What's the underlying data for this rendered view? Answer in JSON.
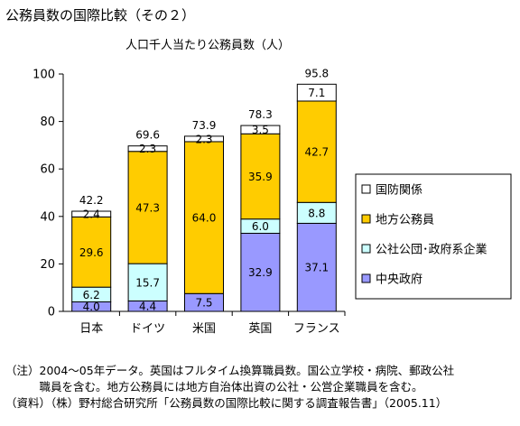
{
  "page": {
    "title": "公務員数の国際比較（その２）"
  },
  "notes": [
    "（注）2004～05年データ。英国はフルタイム換算職員数。国公立学校・病院、郵政公社",
    "　　　職員を含む。地方公務員には地方自治体出資の公社・公営企業職員を含む。",
    "（資料）（株）野村総合研究所「公務員数の国際比較に関する調査報告書」（2005.11）"
  ],
  "chart_data": {
    "type": "bar",
    "stacked": true,
    "title": "人口千人当たり公務員数（人）",
    "categories": [
      "日本",
      "ドイツ",
      "米国",
      "英国",
      "フランス"
    ],
    "series": [
      {
        "name": "中央政府",
        "color": "#9999FF",
        "values": [
          4.0,
          4.4,
          7.5,
          32.9,
          37.1
        ],
        "labels": [
          "4.0",
          "4.4",
          "7.5",
          "32.9",
          "37.1"
        ]
      },
      {
        "name": "公社公団･政府系企業",
        "color": "#CCFFFF",
        "values": [
          6.2,
          15.7,
          0,
          6.0,
          8.8
        ],
        "labels": [
          "6.2",
          "15.7",
          "",
          "6.0",
          "8.8"
        ]
      },
      {
        "name": "地方公務員",
        "color": "#FFCC00",
        "values": [
          29.6,
          47.3,
          64.0,
          35.9,
          42.7
        ],
        "labels": [
          "29.6",
          "47.3",
          "64.0",
          "35.9",
          "42.7"
        ]
      },
      {
        "name": "国防関係",
        "color": "#FFFFFF",
        "values": [
          2.4,
          2.3,
          2.3,
          3.5,
          7.1
        ],
        "labels": [
          "2.4",
          "2.3",
          "2.3",
          "3.5",
          "7.1"
        ]
      }
    ],
    "totals": [
      "42.2",
      "69.6",
      "73.9",
      "78.3",
      "95.8"
    ],
    "legend_order": [
      "国防関係",
      "地方公務員",
      "公社公団･政府系企業",
      "中央政府"
    ],
    "ylim": [
      0,
      100
    ],
    "yticks": [
      "0",
      "20",
      "40",
      "60",
      "80",
      "100"
    ],
    "grid": false,
    "legend_position": "right"
  }
}
